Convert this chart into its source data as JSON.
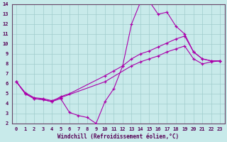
{
  "background_color": "#c8eaea",
  "grid_color": "#a0cccc",
  "line_color": "#aa00aa",
  "xlabel": "Windchill (Refroidissement éolien,°C)",
  "xlim": [
    -0.5,
    23.5
  ],
  "ylim": [
    2,
    14
  ],
  "xticks": [
    0,
    1,
    2,
    3,
    4,
    5,
    6,
    7,
    8,
    9,
    10,
    11,
    12,
    13,
    14,
    15,
    16,
    17,
    18,
    19,
    20,
    21,
    22,
    23
  ],
  "yticks": [
    2,
    3,
    4,
    5,
    6,
    7,
    8,
    9,
    10,
    11,
    12,
    13,
    14
  ],
  "curve1_x": [
    0,
    1,
    2,
    3,
    4,
    5,
    6,
    7,
    8,
    9,
    10,
    11,
    12,
    13,
    14,
    15,
    16,
    17,
    18,
    19,
    20,
    21,
    22,
    23
  ],
  "curve1_y": [
    6.2,
    5.0,
    4.5,
    4.4,
    4.2,
    4.5,
    3.1,
    2.8,
    2.6,
    2.0,
    4.2,
    5.5,
    7.8,
    12.0,
    14.2,
    14.3,
    13.0,
    13.2,
    11.8,
    11.0,
    9.2,
    8.5,
    8.3,
    8.3
  ],
  "curve2_x": [
    0,
    1,
    2,
    3,
    4,
    5,
    6,
    10,
    11,
    12,
    13,
    14,
    15,
    16,
    17,
    18,
    19,
    20,
    21,
    22,
    23
  ],
  "curve2_y": [
    6.2,
    5.0,
    4.5,
    4.4,
    4.2,
    4.7,
    5.0,
    6.8,
    7.3,
    7.8,
    8.5,
    9.0,
    9.3,
    9.7,
    10.1,
    10.5,
    10.8,
    9.2,
    8.5,
    8.3,
    8.3
  ],
  "curve3_x": [
    0,
    1,
    2,
    3,
    4,
    5,
    10,
    13,
    14,
    15,
    16,
    17,
    18,
    19,
    20,
    21,
    22,
    23
  ],
  "curve3_y": [
    6.2,
    5.1,
    4.6,
    4.5,
    4.3,
    4.6,
    6.2,
    7.8,
    8.2,
    8.5,
    8.8,
    9.2,
    9.5,
    9.8,
    8.5,
    8.0,
    8.2,
    8.3
  ]
}
